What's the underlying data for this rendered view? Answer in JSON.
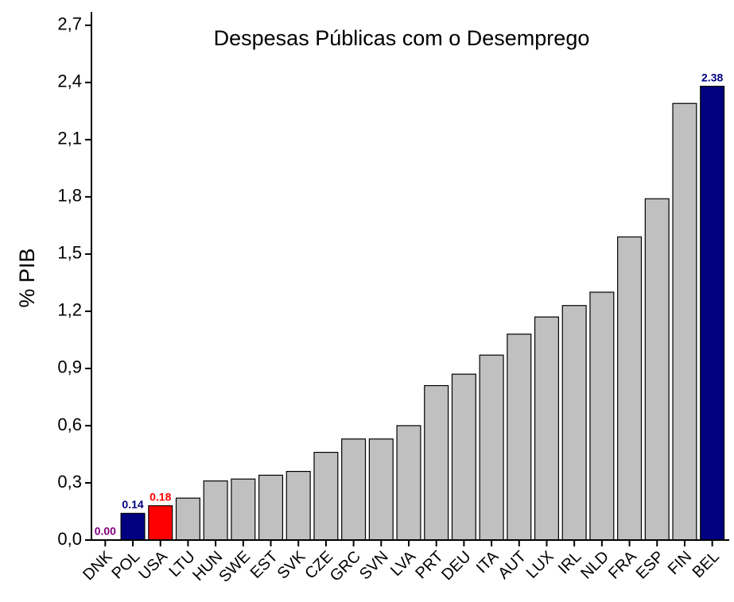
{
  "chart_data": {
    "type": "bar",
    "title": "Despesas Públicas com o Desemprego",
    "y_label": "% PIB",
    "categories": [
      "DNK",
      "POL",
      "USA",
      "LTU",
      "HUN",
      "SWE",
      "EST",
      "SVK",
      "CZE",
      "GRC",
      "SVN",
      "LVA",
      "PRT",
      "DEU",
      "ITA",
      "AUT",
      "LUX",
      "IRL",
      "NLD",
      "FRA",
      "ESP",
      "FIN",
      "BEL"
    ],
    "values": [
      0.0,
      0.14,
      0.18,
      0.22,
      0.31,
      0.32,
      0.34,
      0.36,
      0.46,
      0.53,
      0.53,
      0.6,
      0.81,
      0.87,
      0.97,
      1.08,
      1.17,
      1.23,
      1.3,
      1.59,
      1.79,
      2.29,
      2.38
    ],
    "value_labels": [
      "0.00",
      "0.14",
      "0.18",
      null,
      null,
      null,
      null,
      null,
      null,
      null,
      null,
      null,
      null,
      null,
      null,
      null,
      null,
      null,
      null,
      null,
      null,
      null,
      "2.38"
    ],
    "colors": [
      "#c0c0c0",
      "#000080",
      "#ff0000",
      "#c0c0c0",
      "#c0c0c0",
      "#c0c0c0",
      "#c0c0c0",
      "#c0c0c0",
      "#c0c0c0",
      "#c0c0c0",
      "#c0c0c0",
      "#c0c0c0",
      "#c0c0c0",
      "#c0c0c0",
      "#c0c0c0",
      "#c0c0c0",
      "#c0c0c0",
      "#c0c0c0",
      "#c0c0c0",
      "#c0c0c0",
      "#c0c0c0",
      "#c0c0c0",
      "#000080"
    ],
    "label_colors": [
      "#800080",
      "#000080",
      "#ff0000",
      null,
      null,
      null,
      null,
      null,
      null,
      null,
      null,
      null,
      null,
      null,
      null,
      null,
      null,
      null,
      null,
      null,
      null,
      null,
      "#000080"
    ],
    "ylim": [
      0,
      2.77
    ],
    "yticks": [
      {
        "value": 0,
        "label": "0,0"
      },
      {
        "value": 0.3,
        "label": "0,3"
      },
      {
        "value": 0.6,
        "label": "0,6"
      },
      {
        "value": 0.9,
        "label": "0,9"
      },
      {
        "value": 1.2,
        "label": "1,2"
      },
      {
        "value": 1.5,
        "label": "1,5"
      },
      {
        "value": 1.8,
        "label": "1,8"
      },
      {
        "value": 2.1,
        "label": "2,1"
      },
      {
        "value": 2.4,
        "label": "2,4"
      },
      {
        "value": 2.7,
        "label": "2,7"
      }
    ]
  }
}
